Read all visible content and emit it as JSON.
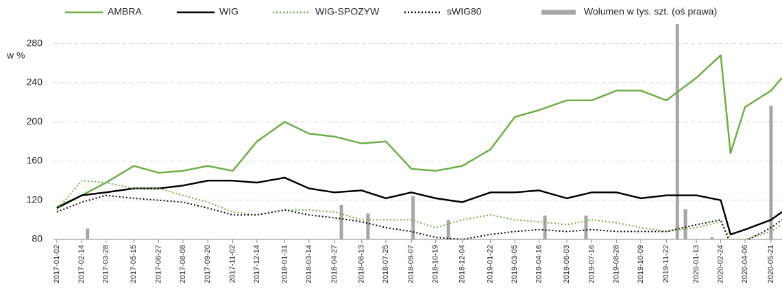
{
  "chart_data": {
    "type": "line",
    "y_label": "w %",
    "ylim": [
      80,
      300
    ],
    "yticks": [
      80,
      120,
      160,
      200,
      240,
      280
    ],
    "y2lim": [
      0,
      100
    ],
    "xlim": [
      "2017-01-02",
      "2020-06-09"
    ],
    "xticks": [
      "2017-01-02",
      "2017-02-14",
      "2017-03-28",
      "2017-05-15",
      "2017-06-27",
      "2017-08-08",
      "2017-09-20",
      "2017-11-02",
      "2017-12-14",
      "2018-01-31",
      "2018-03-14",
      "2018-04-27",
      "2018-06-13",
      "2018-07-25",
      "2018-09-07",
      "2018-10-19",
      "2018-12-04",
      "2019-01-22",
      "2019-03-05",
      "2019-04-16",
      "2019-06-03",
      "2019-07-16",
      "2019-08-28",
      "2019-10-09",
      "2019-11-22",
      "2020-01-13",
      "2020-02-24",
      "2020-04-06",
      "2020-05-21"
    ],
    "grid": true,
    "x": [
      "2017-01-02",
      "2017-02-14",
      "2017-03-28",
      "2017-05-15",
      "2017-06-27",
      "2017-08-08",
      "2017-09-20",
      "2017-11-02",
      "2017-12-14",
      "2018-01-31",
      "2018-03-14",
      "2018-04-27",
      "2018-06-13",
      "2018-07-25",
      "2018-09-07",
      "2018-10-19",
      "2018-12-04",
      "2019-01-22",
      "2019-03-05",
      "2019-04-16",
      "2019-06-03",
      "2019-07-16",
      "2019-08-28",
      "2019-10-09",
      "2019-11-22",
      "2020-01-13",
      "2020-02-24",
      "2020-03-12",
      "2020-04-06",
      "2020-05-21",
      "2020-06-09"
    ],
    "series": [
      {
        "name": "AMBRA",
        "color": "#70ad47",
        "style": "solid",
        "values": [
          113,
          125,
          138,
          155,
          148,
          150,
          155,
          150,
          180,
          200,
          188,
          185,
          178,
          180,
          152,
          150,
          155,
          172,
          205,
          212,
          222,
          222,
          232,
          232,
          222,
          245,
          268,
          168,
          215,
          232,
          245
        ]
      },
      {
        "name": "WIG",
        "color": "#000000",
        "style": "solid",
        "values": [
          112,
          125,
          128,
          132,
          132,
          135,
          140,
          140,
          138,
          143,
          132,
          128,
          130,
          122,
          128,
          122,
          118,
          128,
          128,
          130,
          122,
          128,
          128,
          122,
          125,
          125,
          120,
          85,
          90,
          100,
          108
        ]
      },
      {
        "name": "WIG-SPOZYW",
        "color": "#70ad47",
        "style": "dotted",
        "values": [
          110,
          140,
          138,
          132,
          132,
          125,
          118,
          108,
          105,
          110,
          110,
          108,
          100,
          100,
          100,
          92,
          100,
          105,
          100,
          98,
          95,
          100,
          97,
          92,
          88,
          92,
          98,
          80,
          80,
          88,
          95
        ]
      },
      {
        "name": "sWIG80",
        "color": "#000000",
        "style": "dotted",
        "values": [
          108,
          118,
          125,
          122,
          120,
          118,
          112,
          105,
          105,
          110,
          105,
          102,
          98,
          92,
          88,
          82,
          80,
          85,
          88,
          90,
          88,
          90,
          88,
          88,
          88,
          95,
          100,
          75,
          78,
          92,
          100
        ]
      },
      {
        "name": "Wolumen w tys. szt. (oś prawa)",
        "color": "#a6a6a6",
        "style": "bar",
        "axis": "y2",
        "x": [
          "2017-02-24",
          "2018-05-09",
          "2018-06-24",
          "2018-09-10",
          "2018-11-10",
          "2019-04-26",
          "2019-07-06",
          "2019-12-11",
          "2019-12-25",
          "2020-02-09",
          "2020-05-21"
        ],
        "values": [
          5,
          16,
          12,
          20,
          9,
          11,
          11,
          100,
          14,
          1,
          62
        ]
      }
    ]
  }
}
